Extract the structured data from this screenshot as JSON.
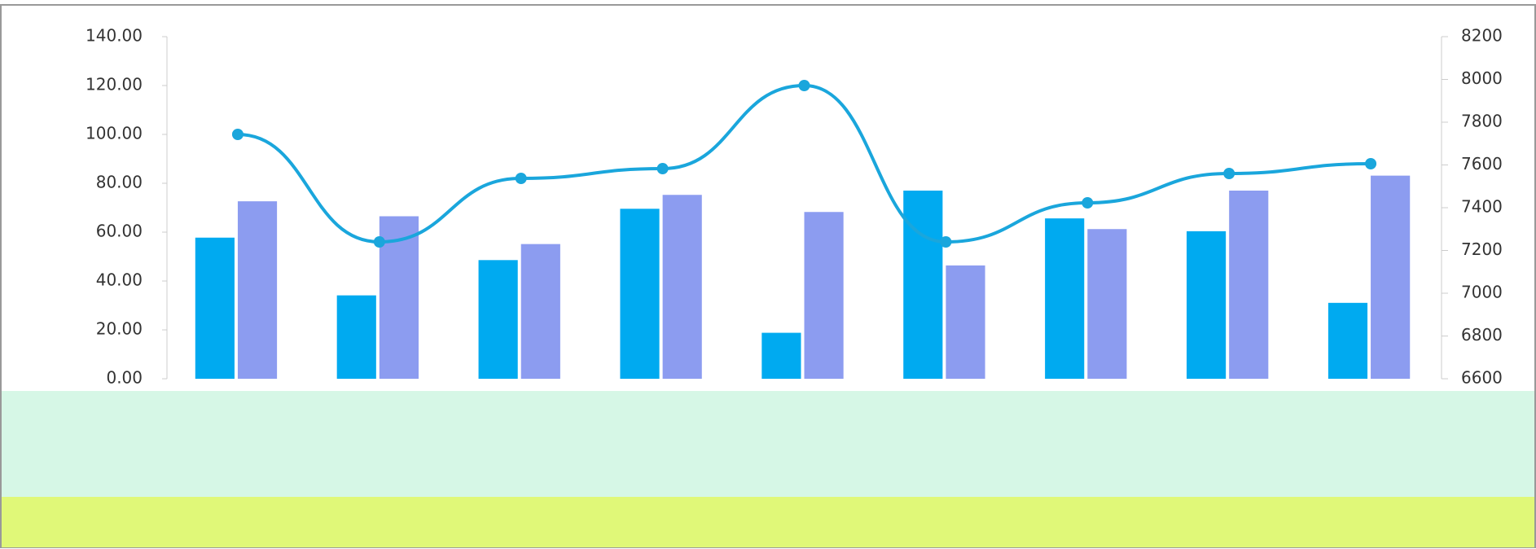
{
  "chart_data": {
    "type": "bar-line",
    "categories": [
      null,
      null,
      null,
      null,
      null,
      null,
      null,
      null,
      null
    ],
    "series": [
      {
        "type": "bar",
        "axis": "y2",
        "color": "#00aaf0",
        "values": [
          7260,
          6990,
          7155,
          7395,
          6815,
          7480,
          7350,
          7290,
          6955
        ]
      },
      {
        "type": "bar",
        "axis": "y2",
        "color": "#8c9cf0",
        "values": [
          7430,
          7360,
          7230,
          7460,
          7380,
          7130,
          7300,
          7480,
          7550
        ]
      },
      {
        "type": "line",
        "axis": "y",
        "color": "#1aa6dc",
        "values": [
          100,
          56,
          82,
          86,
          120,
          56,
          72,
          84,
          88
        ]
      }
    ],
    "ylim": [
      0,
      140
    ],
    "yticks": [
      {
        "value": 0,
        "label": "0.00"
      },
      {
        "value": 20,
        "label": "20.00"
      },
      {
        "value": 40,
        "label": "40.00"
      },
      {
        "value": 60,
        "label": "60.00"
      },
      {
        "value": 80,
        "label": "80.00"
      },
      {
        "value": 100,
        "label": "100.00"
      },
      {
        "value": 120,
        "label": "120.00"
      },
      {
        "value": 140,
        "label": "140.00"
      }
    ],
    "y2lim": [
      6600,
      8200
    ],
    "y2ticks": [
      6600,
      6800,
      7000,
      7200,
      7400,
      7600,
      7800,
      8000,
      8200
    ]
  }
}
